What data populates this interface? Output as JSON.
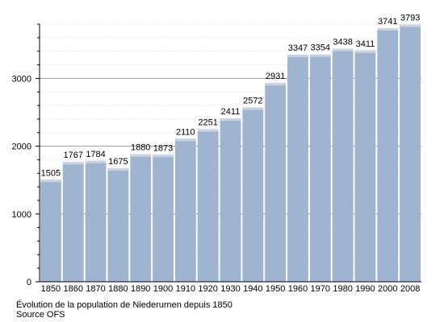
{
  "chart_data": {
    "type": "bar",
    "categories": [
      "1850",
      "1860",
      "1870",
      "1880",
      "1890",
      "1900",
      "1910",
      "1920",
      "1930",
      "1940",
      "1950",
      "1960",
      "1970",
      "1980",
      "1990",
      "2000",
      "2008"
    ],
    "values": [
      1505,
      1767,
      1784,
      1675,
      1880,
      1873,
      2110,
      2251,
      2411,
      2572,
      2931,
      3347,
      3354,
      3438,
      3411,
      3741,
      3793
    ],
    "title": "",
    "xlabel": "",
    "ylabel": "",
    "ylim": [
      0,
      3800
    ],
    "yticks": [
      0,
      1000,
      2000,
      3000
    ],
    "grid": true,
    "legend": "none",
    "bar_color": "#9fb4cf",
    "caption": "Évolution de la population de Niederurnen depuis 1850",
    "source": "Source OFS"
  }
}
